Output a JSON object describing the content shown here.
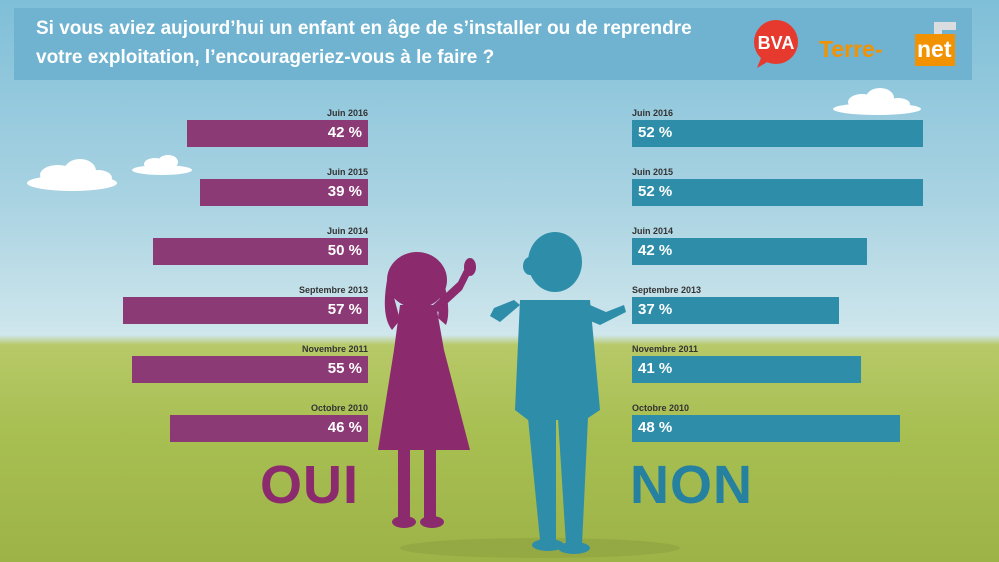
{
  "header": {
    "question": "Si vous aviez aujourd’hui un enfant en âge de s’installer ou de reprendre votre exploitation, l’encourageriez-vous à le faire ?",
    "logo_bva": "BVA",
    "logo_terre": "Terre-",
    "logo_net": "net"
  },
  "colors": {
    "oui": "#8c3a76",
    "non": "#2e8ea9",
    "header": "#6fb3d1"
  },
  "chart_data": {
    "type": "bar",
    "orientation": "horizontal",
    "categories": [
      "Juin 2016",
      "Juin 2015",
      "Juin 2014",
      "Septembre 2013",
      "Novembre 2011",
      "Octobre 2010"
    ],
    "series": [
      {
        "name": "OUI",
        "values": [
          42,
          39,
          50,
          57,
          55,
          46
        ],
        "labels": [
          "42 %",
          "39 %",
          "50 %",
          "57 %",
          "55 %",
          "46 %"
        ]
      },
      {
        "name": "NON",
        "values": [
          52,
          52,
          42,
          37,
          41,
          48
        ],
        "labels": [
          "52 %",
          "52 %",
          "42 %",
          "37 %",
          "41 %",
          "48 %"
        ]
      }
    ],
    "unit": "%",
    "title": "Si vous aviez aujourd’hui un enfant en âge de s’installer ou de reprendre votre exploitation, l’encourageriez-vous à le faire ?"
  }
}
